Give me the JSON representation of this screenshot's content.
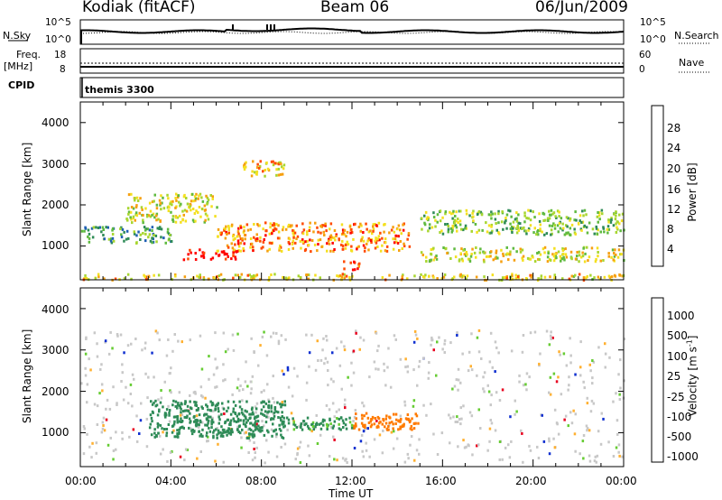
{
  "header": {
    "station": "Kodiak (fitACF)",
    "beam": "Beam 06",
    "date": "06/Jun/2009"
  },
  "status_panels": {
    "nsky": {
      "label": "N.Sky",
      "ticks": [
        "10^5",
        "10^0"
      ]
    },
    "nsearch": {
      "label": "N.Search",
      "ticks": [
        "10^5",
        "10^0"
      ]
    },
    "freq": {
      "label_line1": "Freq.",
      "label_line2": "[MHz]",
      "ticks": [
        "18",
        "8"
      ]
    },
    "nave": {
      "label": "Nave",
      "ticks": [
        "60",
        "0"
      ]
    },
    "cpid": {
      "label": "CPID",
      "value": "themis 3300"
    }
  },
  "x_axis": {
    "label": "Time UT",
    "ticks": [
      "00:00",
      "04:00",
      "08:00",
      "12:00",
      "16:00",
      "20:00",
      "00:00"
    ]
  },
  "colors": {
    "power_scale": [
      "#0000ff",
      "#1f5fb4",
      "#2e8b57",
      "#5fba3f",
      "#a8d630",
      "#f4e020",
      "#f6a010",
      "#ff4a00",
      "#ff0000"
    ],
    "velocity_scale": [
      "#e8001e",
      "#ff3a10",
      "#ff7a00",
      "#ffb030",
      "#c8c8c8",
      "#c8c8c8",
      "#66cc33",
      "#2e8b57",
      "#2040b0",
      "#1030d0"
    ]
  },
  "chart_data": [
    {
      "type": "heatmap",
      "title": "Power",
      "xlabel": "Time UT",
      "ylabel": "Slant Range [km]",
      "x_range_hours": [
        0,
        24
      ],
      "ylim": [
        180,
        4500
      ],
      "y_ticks": [
        1000,
        2000,
        3000,
        4000
      ],
      "colorbar": {
        "label": "Power [dB]",
        "ticks": [
          4,
          8,
          12,
          16,
          20,
          24,
          28
        ],
        "range": [
          0,
          32
        ]
      },
      "features": [
        {
          "t_start": 0,
          "t_end": 24,
          "range_min": 200,
          "range_max": 350,
          "value": 20
        },
        {
          "t_start": 4.5,
          "t_end": 7.0,
          "range_min": 700,
          "range_max": 950,
          "value": 30
        },
        {
          "t_start": 6.0,
          "t_end": 14.5,
          "range_min": 900,
          "range_max": 1600,
          "value": 24
        },
        {
          "t_start": 11.5,
          "t_end": 12.3,
          "range_min": 450,
          "range_max": 700,
          "value": 30
        },
        {
          "t_start": 2.0,
          "t_end": 6.0,
          "range_min": 1600,
          "range_max": 2300,
          "value": 18
        },
        {
          "t_start": 0,
          "t_end": 4.0,
          "range_min": 1100,
          "range_max": 1500,
          "value": 10
        },
        {
          "t_start": 7.0,
          "t_end": 9.0,
          "range_min": 2700,
          "range_max": 3100,
          "value": 22
        },
        {
          "t_start": 15.0,
          "t_end": 24,
          "range_min": 1300,
          "range_max": 1900,
          "value": 14
        },
        {
          "t_start": 15.0,
          "t_end": 24,
          "range_min": 650,
          "range_max": 1000,
          "value": 18
        }
      ]
    },
    {
      "type": "heatmap",
      "title": "Velocity",
      "xlabel": "Time UT",
      "ylabel": "Slant Range [km]",
      "x_range_hours": [
        0,
        24
      ],
      "ylim": [
        180,
        4500
      ],
      "y_ticks": [
        1000,
        2000,
        3000,
        4000
      ],
      "colorbar": {
        "label": "Velocity [m s^-1]",
        "ticks": [
          1000,
          500,
          100,
          25,
          -25,
          -100,
          -500,
          -1000
        ]
      },
      "features": [
        {
          "t_start": 3.0,
          "t_end": 9.0,
          "range_min": 900,
          "range_max": 1800,
          "value": 150
        },
        {
          "t_start": 9.0,
          "t_end": 12.0,
          "range_min": 1100,
          "range_max": 1400,
          "value": 120
        },
        {
          "t_start": 12.0,
          "t_end": 15.0,
          "range_min": 1100,
          "range_max": 1500,
          "value": -150
        },
        {
          "t_start": 0,
          "t_end": 24,
          "range_min": 300,
          "range_max": 3500,
          "value": 0
        }
      ]
    }
  ]
}
